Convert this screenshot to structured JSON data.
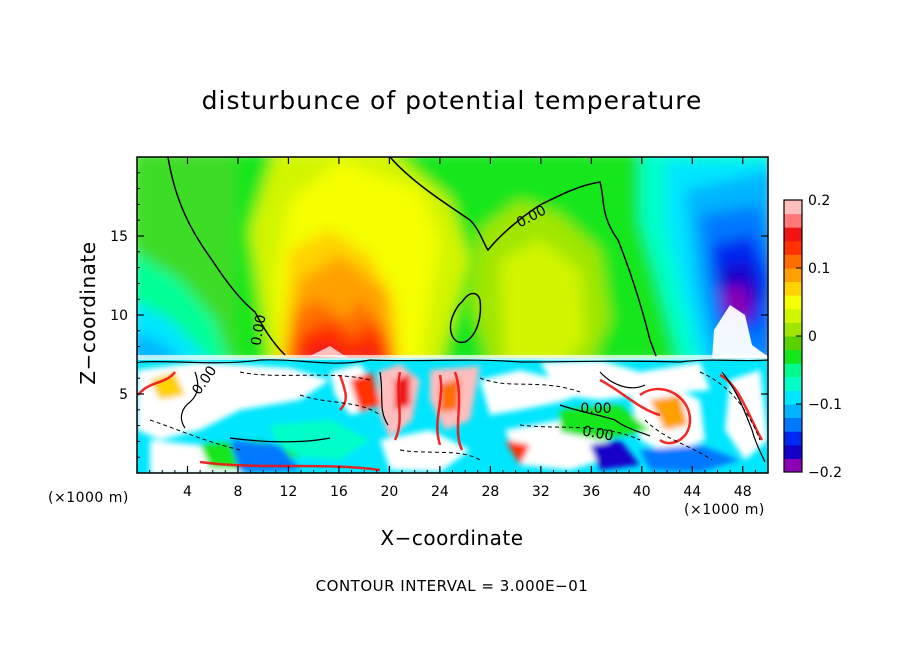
{
  "chart_data": {
    "type": "heatmap",
    "title": "disturbunce of potential temperature",
    "xlabel": "X−coordinate",
    "ylabel": "Z−coordinate",
    "x_unit": "(×1000 m)",
    "xlim": [
      0,
      50
    ],
    "ylim": [
      0,
      20
    ],
    "x_ticks": [
      4,
      8,
      12,
      16,
      20,
      24,
      28,
      32,
      36,
      40,
      44,
      48
    ],
    "y_ticks": [
      5,
      10,
      15
    ],
    "colorbar": {
      "range": [
        -0.2,
        0.2
      ],
      "tick_values": [
        0.2,
        0.1,
        0,
        -0.1,
        -0.2
      ],
      "tick_labels": [
        "0.2",
        "0.1",
        "0",
        "−0.1",
        "−0.2"
      ],
      "colors": [
        "#8c00b4",
        "#1400c8",
        "#0028f0",
        "#0078ff",
        "#00b4ff",
        "#00e6ff",
        "#00ffc8",
        "#00fa8c",
        "#14e61e",
        "#5ad200",
        "#a0e600",
        "#d2f500",
        "#f5ff00",
        "#ffd200",
        "#ffa000",
        "#ff6e00",
        "#ff3200",
        "#f01414",
        "#ff7878",
        "#ffbebe"
      ]
    },
    "contour_labels": [
      "0.00",
      "0.00",
      "0.00",
      "0.00",
      "0.00"
    ],
    "contour_interval": "CONTOUR INTERVAL = 3.000E−01"
  }
}
